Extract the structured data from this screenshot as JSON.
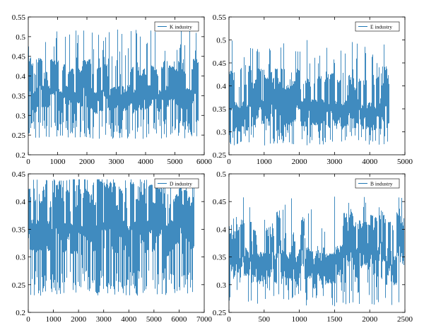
{
  "chart_data": [
    {
      "type": "line",
      "series": [
        {
          "name": "K industry",
          "color": "#1f77b4",
          "stats": {
            "n": 5800,
            "base": 0.335,
            "range": [
              0.24,
              0.52
            ]
          }
        }
      ],
      "xlim": [
        0,
        6000
      ],
      "ylim": [
        0.2,
        0.55
      ],
      "xticks": [
        0,
        1000,
        2000,
        3000,
        4000,
        5000,
        6000
      ],
      "yticks": [
        0.2,
        0.25,
        0.3,
        0.35,
        0.4,
        0.45,
        0.5,
        0.55
      ],
      "xtick_labels": [
        "0",
        "1000",
        "2000",
        "3000",
        "4000",
        "5000",
        "6000"
      ],
      "ytick_labels": [
        "0.2",
        "0.25",
        "0.3",
        "0.35",
        "0.4",
        "0.45",
        "0.5",
        "0.55"
      ],
      "legend": "top-right",
      "grid": false
    },
    {
      "type": "line",
      "series": [
        {
          "name": "E industry",
          "color": "#1f77b4",
          "stats": {
            "n": 4550,
            "base": 0.33,
            "range": [
              0.27,
              0.5
            ]
          }
        }
      ],
      "xlim": [
        0,
        5000
      ],
      "ylim": [
        0.25,
        0.55
      ],
      "xticks": [
        0,
        1000,
        2000,
        3000,
        4000,
        5000
      ],
      "yticks": [
        0.25,
        0.3,
        0.35,
        0.4,
        0.45,
        0.5,
        0.55
      ],
      "xtick_labels": [
        "0",
        "1000",
        "2000",
        "3000",
        "4000",
        "5000"
      ],
      "ytick_labels": [
        "0.25",
        "0.3",
        "0.35",
        "0.4",
        "0.45",
        "0.5",
        "0.55"
      ],
      "legend": "top-right",
      "grid": false
    },
    {
      "type": "line",
      "series": [
        {
          "name": "D industry",
          "color": "#1f77b4",
          "stats": {
            "n": 6600,
            "base": 0.33,
            "range": [
              0.23,
              0.44
            ]
          }
        }
      ],
      "xlim": [
        0,
        7000
      ],
      "ylim": [
        0.2,
        0.45
      ],
      "xticks": [
        0,
        1000,
        2000,
        3000,
        4000,
        5000,
        6000,
        7000
      ],
      "yticks": [
        0.2,
        0.25,
        0.3,
        0.35,
        0.4,
        0.45
      ],
      "xtick_labels": [
        "0",
        "1000",
        "2000",
        "3000",
        "4000",
        "5000",
        "6000",
        "7000"
      ],
      "ytick_labels": [
        "0.2",
        "0.25",
        "0.3",
        "0.35",
        "0.4",
        "0.45"
      ],
      "legend": "top-right",
      "grid": false
    },
    {
      "type": "line",
      "series": [
        {
          "name": "B industry",
          "color": "#1f77b4",
          "stats": {
            "n": 2480,
            "base": 0.33,
            "range": [
              0.26,
              0.46
            ]
          }
        }
      ],
      "xlim": [
        0,
        2500
      ],
      "ylim": [
        0.25,
        0.5
      ],
      "xticks": [
        0,
        500,
        1000,
        1500,
        2000,
        2500
      ],
      "yticks": [
        0.25,
        0.3,
        0.35,
        0.4,
        0.45,
        0.5
      ],
      "xtick_labels": [
        "0",
        "500",
        "1000",
        "1500",
        "2000",
        "2500"
      ],
      "ytick_labels": [
        "0.25",
        "0.3",
        "0.35",
        "0.4",
        "0.45",
        "0.5"
      ],
      "legend": "top-right",
      "grid": false
    }
  ]
}
